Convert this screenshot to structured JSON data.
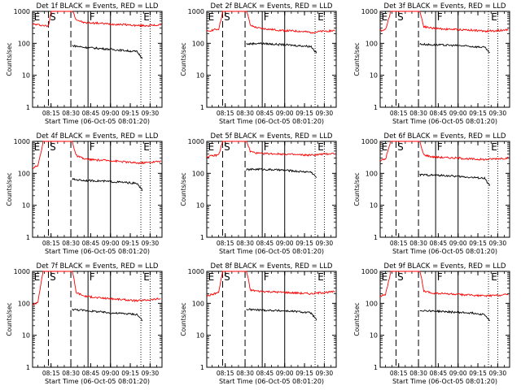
{
  "chart_data": [
    {
      "type": "line",
      "title": "Det 1f BLACK = Events, RED = LLD",
      "xlabel": "Start Time (06-Oct-05 08:01:20)",
      "ylabel": "Counts/sec",
      "yscale": "log",
      "ylim": [
        1,
        1000
      ],
      "xlim": [
        "08:01",
        "09:39"
      ],
      "x_ticks": [
        "08:15",
        "08:30",
        "08:45",
        "09:00",
        "09:15",
        "09:30"
      ],
      "y_ticks": [
        "1",
        "10",
        "100",
        "1000"
      ],
      "annotations": [
        "E",
        "S",
        "F",
        "E"
      ],
      "series": [
        {
          "color": "#ff0000",
          "x": [
            "08:01",
            "08:10",
            "08:13",
            "08:14",
            "08:15",
            "08:16",
            "08:31",
            "08:32",
            "08:34",
            "08:40",
            "08:50",
            "09:00",
            "09:10",
            "09:20",
            "09:30",
            "09:38"
          ],
          "values": [
            400,
            360,
            340,
            600,
            1000,
            1000,
            1000,
            900,
            560,
            440,
            430,
            400,
            390,
            360,
            360,
            380
          ]
        },
        {
          "color": "#000000",
          "x": [
            "08:31",
            "08:40",
            "08:50",
            "09:00",
            "09:10",
            "09:20",
            "09:24"
          ],
          "values": [
            85,
            75,
            70,
            65,
            60,
            55,
            35
          ]
        }
      ]
    },
    {
      "type": "line",
      "title": "Det 2f BLACK = Events, RED = LLD",
      "xlabel": "Start Time (06-Oct-05 08:01:20)",
      "ylabel": "Counts/sec",
      "yscale": "log",
      "ylim": [
        1,
        1000
      ],
      "xlim": [
        "08:01",
        "09:39"
      ],
      "x_ticks": [
        "08:15",
        "08:30",
        "08:45",
        "09:00",
        "09:15",
        "09:30"
      ],
      "y_ticks": [
        "1",
        "10",
        "100",
        "1000"
      ],
      "annotations": [
        "E",
        "S",
        "F",
        "E"
      ],
      "series": [
        {
          "color": "#ff0000",
          "x": [
            "08:01",
            "08:05",
            "08:10",
            "08:12",
            "08:13",
            "08:14",
            "08:31",
            "08:32",
            "08:34",
            "08:40",
            "08:50",
            "09:00",
            "09:10",
            "09:20",
            "09:30",
            "09:38"
          ],
          "values": [
            230,
            260,
            280,
            600,
            1000,
            1000,
            1000,
            800,
            360,
            300,
            270,
            250,
            240,
            220,
            240,
            250
          ]
        },
        {
          "color": "#000000",
          "x": [
            "08:31",
            "08:40",
            "08:50",
            "09:00",
            "09:10",
            "09:20",
            "09:24"
          ],
          "values": [
            95,
            100,
            95,
            90,
            85,
            80,
            50
          ]
        }
      ]
    },
    {
      "type": "line",
      "title": "Det 3f BLACK = Events, RED = LLD",
      "xlabel": "Start Time (06-Oct-05 08:01:20)",
      "ylabel": "Counts/sec",
      "yscale": "log",
      "ylim": [
        1,
        1000
      ],
      "xlim": [
        "08:01",
        "09:39"
      ],
      "x_ticks": [
        "08:15",
        "08:30",
        "08:45",
        "09:00",
        "09:15",
        "09:30"
      ],
      "y_ticks": [
        "1",
        "10",
        "100",
        "1000"
      ],
      "annotations": [
        "E",
        "S",
        "F",
        "E"
      ],
      "series": [
        {
          "color": "#ff0000",
          "x": [
            "08:01",
            "08:05",
            "08:08",
            "08:09",
            "08:10",
            "08:31",
            "08:32",
            "08:34",
            "08:40",
            "08:50",
            "09:00",
            "09:10",
            "09:20",
            "09:30",
            "09:38"
          ],
          "values": [
            250,
            270,
            700,
            1000,
            1000,
            1000,
            700,
            340,
            300,
            280,
            270,
            260,
            240,
            250,
            270
          ]
        },
        {
          "color": "#000000",
          "x": [
            "08:31",
            "08:40",
            "08:50",
            "09:00",
            "09:10",
            "09:20",
            "09:24"
          ],
          "values": [
            95,
            90,
            88,
            85,
            80,
            75,
            50
          ]
        }
      ]
    },
    {
      "type": "line",
      "title": "Det 4f BLACK = Events, RED = LLD",
      "xlabel": "Start Time (06-Oct-05 08:01:20)",
      "ylabel": "Counts/sec",
      "yscale": "log",
      "ylim": [
        1,
        1000
      ],
      "xlim": [
        "08:01",
        "09:39"
      ],
      "x_ticks": [
        "08:15",
        "08:30",
        "08:45",
        "09:00",
        "09:15",
        "09:30"
      ],
      "y_ticks": [
        "1",
        "10",
        "100",
        "1000"
      ],
      "annotations": [
        "E",
        "S",
        "F",
        "E"
      ],
      "series": [
        {
          "color": "#ff0000",
          "x": [
            "08:01",
            "08:05",
            "08:08",
            "08:09",
            "08:10",
            "08:31",
            "08:32",
            "08:34",
            "08:40",
            "08:50",
            "09:00",
            "09:10",
            "09:20",
            "09:30",
            "09:38"
          ],
          "values": [
            150,
            170,
            600,
            1000,
            1000,
            1000,
            700,
            360,
            280,
            260,
            250,
            230,
            210,
            220,
            240
          ]
        },
        {
          "color": "#000000",
          "x": [
            "08:31",
            "08:40",
            "08:50",
            "09:00",
            "09:10",
            "09:20",
            "09:24"
          ],
          "values": [
            65,
            60,
            58,
            55,
            52,
            48,
            30
          ]
        }
      ]
    },
    {
      "type": "line",
      "title": "Det 5f BLACK = Events, RED = LLD",
      "xlabel": "Start Time (06-Oct-05 08:01:20)",
      "ylabel": "Counts/sec",
      "yscale": "log",
      "ylim": [
        1,
        1000
      ],
      "xlim": [
        "08:01",
        "09:39"
      ],
      "x_ticks": [
        "08:15",
        "08:30",
        "08:45",
        "09:00",
        "09:15",
        "09:30"
      ],
      "y_ticks": [
        "1",
        "10",
        "100",
        "1000"
      ],
      "annotations": [
        "E",
        "S",
        "F",
        "E"
      ],
      "series": [
        {
          "color": "#ff0000",
          "x": [
            "08:01",
            "08:05",
            "08:10",
            "08:12",
            "08:13",
            "08:14",
            "08:31",
            "08:32",
            "08:34",
            "08:40",
            "08:50",
            "09:00",
            "09:10",
            "09:20",
            "09:30",
            "09:38"
          ],
          "values": [
            330,
            350,
            380,
            700,
            1000,
            1000,
            1000,
            800,
            480,
            420,
            410,
            400,
            380,
            370,
            400,
            420
          ]
        },
        {
          "color": "#000000",
          "x": [
            "08:31",
            "08:40",
            "08:50",
            "09:00",
            "09:10",
            "09:20",
            "09:24"
          ],
          "values": [
            130,
            135,
            130,
            125,
            115,
            110,
            75
          ]
        }
      ]
    },
    {
      "type": "line",
      "title": "Det 6f BLACK = Events, RED = LLD",
      "xlabel": "Start Time (06-Oct-05 08:01:20)",
      "ylabel": "Counts/sec",
      "yscale": "log",
      "ylim": [
        1,
        1000
      ],
      "xlim": [
        "08:01",
        "09:39"
      ],
      "x_ticks": [
        "08:15",
        "08:30",
        "08:45",
        "09:00",
        "09:15",
        "09:30"
      ],
      "y_ticks": [
        "1",
        "10",
        "100",
        "1000"
      ],
      "annotations": [
        "E",
        "S",
        "F",
        "E"
      ],
      "series": [
        {
          "color": "#ff0000",
          "x": [
            "08:01",
            "08:05",
            "08:08",
            "08:09",
            "08:10",
            "08:31",
            "08:32",
            "08:34",
            "08:40",
            "08:50",
            "09:00",
            "09:10",
            "09:20",
            "09:30",
            "09:38"
          ],
          "values": [
            250,
            280,
            700,
            1000,
            1000,
            1000,
            700,
            380,
            330,
            310,
            300,
            280,
            270,
            290,
            300
          ]
        },
        {
          "color": "#000000",
          "x": [
            "08:31",
            "08:40",
            "08:50",
            "09:00",
            "09:10",
            "09:20",
            "09:24"
          ],
          "values": [
            90,
            88,
            85,
            80,
            75,
            70,
            40
          ]
        }
      ]
    },
    {
      "type": "line",
      "title": "Det 7f BLACK = Events, RED = LLD",
      "xlabel": "Start Time (06-Oct-05 08:01:20)",
      "ylabel": "Counts/sec",
      "yscale": "log",
      "ylim": [
        1,
        1000
      ],
      "xlim": [
        "08:01",
        "09:39"
      ],
      "x_ticks": [
        "08:15",
        "08:30",
        "08:45",
        "09:00",
        "09:15",
        "09:30"
      ],
      "y_ticks": [
        "1",
        "10",
        "100",
        "1000"
      ],
      "annotations": [
        "E",
        "S",
        "F",
        "E"
      ],
      "series": [
        {
          "color": "#ff0000",
          "x": [
            "08:01",
            "08:05",
            "08:08",
            "08:09",
            "08:10",
            "08:31",
            "08:32",
            "08:34",
            "08:40",
            "08:50",
            "09:00",
            "09:10",
            "09:20",
            "09:30",
            "09:38"
          ],
          "values": [
            90,
            110,
            600,
            1000,
            1000,
            1000,
            700,
            220,
            170,
            150,
            140,
            130,
            120,
            130,
            140
          ]
        },
        {
          "color": "#000000",
          "x": [
            "08:31",
            "08:40",
            "08:50",
            "09:00",
            "09:10",
            "09:20",
            "09:24"
          ],
          "values": [
            65,
            60,
            55,
            50,
            48,
            45,
            30
          ]
        }
      ]
    },
    {
      "type": "line",
      "title": "Det 8f BLACK = Events, RED = LLD",
      "xlabel": "Start Time (06-Oct-05 08:01:20)",
      "ylabel": "Counts/sec",
      "yscale": "log",
      "ylim": [
        1,
        1000
      ],
      "xlim": [
        "08:01",
        "09:39"
      ],
      "x_ticks": [
        "08:15",
        "08:30",
        "08:45",
        "09:00",
        "09:15",
        "09:30"
      ],
      "y_ticks": [
        "1",
        "10",
        "100",
        "1000"
      ],
      "annotations": [
        "E",
        "S",
        "F",
        "E"
      ],
      "series": [
        {
          "color": "#ff0000",
          "x": [
            "08:01",
            "08:05",
            "08:10",
            "08:12",
            "08:13",
            "08:14",
            "08:31",
            "08:32",
            "08:34",
            "08:40",
            "08:50",
            "09:00",
            "09:10",
            "09:20",
            "09:30",
            "09:38"
          ],
          "values": [
            170,
            190,
            220,
            600,
            1000,
            1000,
            1000,
            700,
            260,
            240,
            230,
            220,
            210,
            200,
            220,
            230
          ]
        },
        {
          "color": "#000000",
          "x": [
            "08:31",
            "08:40",
            "08:50",
            "09:00",
            "09:10",
            "09:20",
            "09:24"
          ],
          "values": [
            65,
            62,
            60,
            58,
            55,
            50,
            30
          ]
        }
      ]
    },
    {
      "type": "line",
      "title": "Det 9f BLACK = Events, RED = LLD",
      "xlabel": "Start Time (06-Oct-05 08:01:20)",
      "ylabel": "Counts/sec",
      "yscale": "log",
      "ylim": [
        1,
        1000
      ],
      "xlim": [
        "08:01",
        "09:39"
      ],
      "x_ticks": [
        "08:15",
        "08:30",
        "08:45",
        "09:00",
        "09:15",
        "09:30"
      ],
      "y_ticks": [
        "1",
        "10",
        "100",
        "1000"
      ],
      "annotations": [
        "E",
        "S",
        "F",
        "E"
      ],
      "series": [
        {
          "color": "#ff0000",
          "x": [
            "08:01",
            "08:05",
            "08:08",
            "08:09",
            "08:10",
            "08:31",
            "08:32",
            "08:34",
            "08:40",
            "08:50",
            "09:00",
            "09:10",
            "09:20",
            "09:30",
            "09:38"
          ],
          "values": [
            170,
            190,
            600,
            1000,
            1000,
            1000,
            700,
            240,
            210,
            200,
            190,
            180,
            170,
            180,
            190
          ]
        },
        {
          "color": "#000000",
          "x": [
            "08:31",
            "08:40",
            "08:50",
            "09:00",
            "09:10",
            "09:20",
            "09:24"
          ],
          "values": [
            60,
            58,
            55,
            52,
            50,
            45,
            28
          ]
        }
      ]
    }
  ]
}
